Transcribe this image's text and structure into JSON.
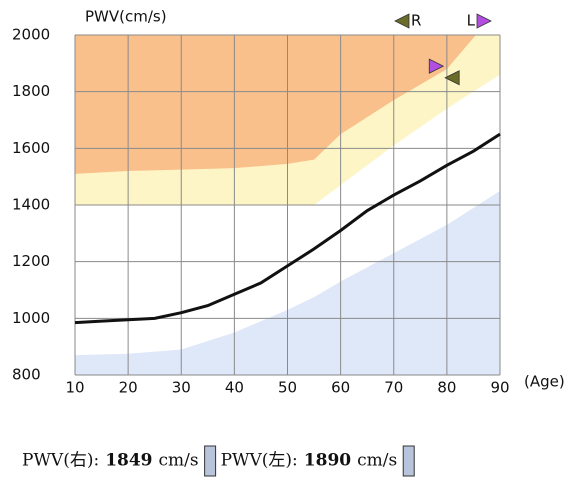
{
  "chart_data": {
    "type": "line",
    "y_label": "PWV(cm/s)",
    "x_label": "(Age)",
    "xlim": [
      10,
      90
    ],
    "xticks": [
      10,
      20,
      30,
      40,
      50,
      60,
      70,
      80,
      90
    ],
    "ylim": [
      800,
      2000
    ],
    "yticks": [
      800,
      1000,
      1200,
      1400,
      1600,
      1800,
      2000
    ],
    "grid": true,
    "regions": [
      {
        "color": "#fdf5c6",
        "fill": "above",
        "x": [
          10,
          20,
          30,
          40,
          50,
          55,
          60,
          70,
          80,
          90
        ],
        "values": [
          1400,
          1400,
          1400,
          1400,
          1400,
          1400,
          1470,
          1610,
          1740,
          1860
        ]
      },
      {
        "color": "#f9c08c",
        "fill": "above",
        "x": [
          10,
          20,
          30,
          40,
          50,
          55,
          60,
          70,
          80,
          90
        ],
        "values": [
          1510,
          1520,
          1525,
          1530,
          1545,
          1560,
          1650,
          1770,
          1880,
          2100
        ]
      },
      {
        "color": "#dfe8f8",
        "fill": "below",
        "x": [
          10,
          20,
          30,
          40,
          50,
          55,
          60,
          70,
          80,
          90
        ],
        "values": [
          870,
          875,
          890,
          950,
          1030,
          1075,
          1130,
          1230,
          1330,
          1450
        ]
      }
    ],
    "series": [
      {
        "color": "#111111",
        "x": [
          10,
          15,
          20,
          25,
          30,
          35,
          40,
          45,
          50,
          55,
          60,
          65,
          70,
          75,
          80,
          85,
          90
        ],
        "values": [
          985,
          990,
          995,
          1000,
          1020,
          1045,
          1085,
          1125,
          1185,
          1245,
          1310,
          1380,
          1435,
          1485,
          1540,
          1590,
          1650
        ]
      }
    ],
    "markers": [
      {
        "name": "R",
        "color": "#6b6b2a",
        "shape": "triangle-left",
        "x": 81,
        "y": 1849
      },
      {
        "name": "L",
        "color": "#b24fe0",
        "shape": "triangle-right",
        "x": 78,
        "y": 1890
      }
    ],
    "footer": [
      {
        "label": "PWV(右):",
        "unit": "cm/s"
      },
      {
        "label": "PWV(左):",
        "unit": "cm/s"
      }
    ]
  }
}
